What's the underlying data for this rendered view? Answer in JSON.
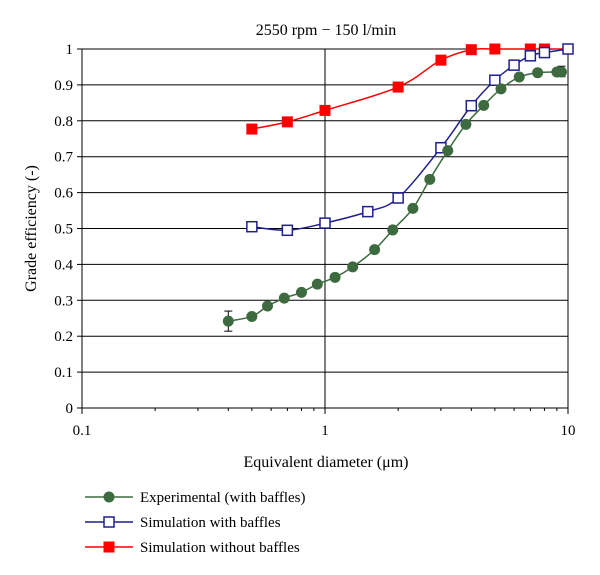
{
  "chart_data": {
    "type": "line",
    "title": "2550 rpm − 150 l/min",
    "xlabel": "Equivalent diameter (μm)",
    "ylabel": "Grade efficiency (-)",
    "x_scale": "log",
    "xlim": [
      0.1,
      10
    ],
    "ylim": [
      0,
      1
    ],
    "x_ticks": [
      0.1,
      1,
      10
    ],
    "x_tick_labels": [
      "0.1",
      "1",
      "10"
    ],
    "y_ticks": [
      0,
      0.1,
      0.2,
      0.3,
      0.4,
      0.5,
      0.6,
      0.7,
      0.8,
      0.9,
      1
    ],
    "y_tick_labels": [
      "0",
      "0.1",
      "0.2",
      "0.3",
      "0.4",
      "0.5",
      "0.6",
      "0.7",
      "0.8",
      "0.9",
      "1"
    ],
    "grid": "horizontal",
    "legend_position": "bottom",
    "series": [
      {
        "name": "Experimental (with baffles)",
        "color": "#3d6b3f",
        "marker": "circle-filled",
        "x": [
          0.4,
          0.5,
          0.58,
          0.68,
          0.8,
          0.93,
          1.1,
          1.3,
          1.6,
          1.9,
          2.3,
          2.7,
          3.2,
          3.8,
          4.5,
          5.3,
          6.3,
          7.5,
          9.0,
          9.4
        ],
        "y": [
          0.242,
          0.255,
          0.284,
          0.306,
          0.322,
          0.345,
          0.364,
          0.393,
          0.441,
          0.496,
          0.556,
          0.637,
          0.717,
          0.79,
          0.843,
          0.889,
          0.922,
          0.934,
          0.936,
          0.936
        ],
        "error_bars": [
          {
            "x": 0.4,
            "low": 0.214,
            "high": 0.27
          },
          {
            "x": 9.4,
            "low": 0.923,
            "high": 0.952
          }
        ]
      },
      {
        "name": "Simulation with baffles",
        "color": "#1f1f8f",
        "marker": "square-open",
        "x": [
          0.5,
          0.7,
          1.0,
          1.5,
          2.0,
          3.0,
          4.0,
          5.0,
          6.0,
          7.0,
          8.0,
          10.0
        ],
        "y": [
          0.505,
          0.495,
          0.515,
          0.547,
          0.585,
          0.725,
          0.842,
          0.913,
          0.955,
          0.981,
          0.99,
          1.0
        ]
      },
      {
        "name": "Simulation without baffles",
        "color": "#ff0000",
        "marker": "square-filled",
        "x": [
          0.5,
          0.7,
          1.0,
          2.0,
          3.0,
          4.0,
          5.0,
          7.0,
          8.0,
          10.0
        ],
        "y": [
          0.777,
          0.797,
          0.829,
          0.894,
          0.969,
          0.998,
          1.0,
          1.0,
          1.0,
          1.0
        ]
      }
    ]
  }
}
